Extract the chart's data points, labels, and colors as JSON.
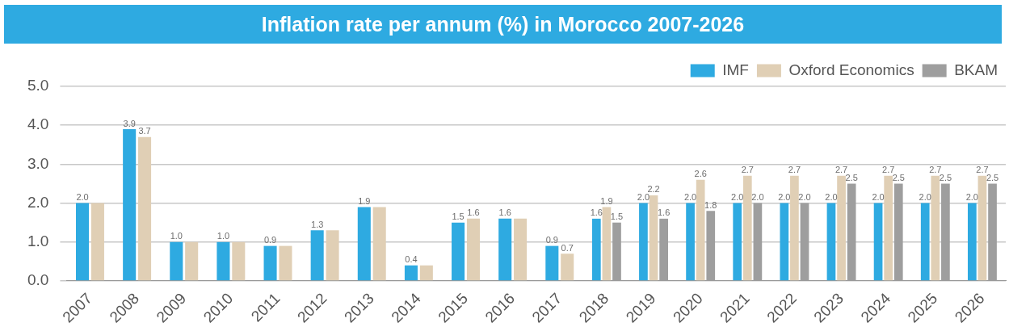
{
  "chart_data": {
    "type": "bar",
    "title": "Inflation rate per annum (%) in Morocco 2007-2026",
    "categories": [
      "2007",
      "2008",
      "2009",
      "2010",
      "2011",
      "2012",
      "2013",
      "2014",
      "2015",
      "2016",
      "2017",
      "2018",
      "2019",
      "2020",
      "2021",
      "2022",
      "2023",
      "2024",
      "2025",
      "2026"
    ],
    "series": [
      {
        "name": "IMF",
        "color": "#2eaae1",
        "values": [
          2.0,
          3.9,
          1.0,
          1.0,
          0.9,
          1.3,
          1.9,
          0.4,
          1.5,
          1.6,
          0.9,
          1.6,
          2.0,
          2.0,
          2.0,
          2.0,
          2.0,
          2.0,
          2.0,
          2.0
        ],
        "value_labels": [
          "2.0",
          "3.9",
          "1.0",
          "1.0",
          "0.9",
          "1.3",
          "1.9",
          "0.4",
          "1.5",
          "1.6",
          "0.9",
          "1.6",
          "2.0",
          "2.0",
          "2.0",
          "2.0",
          "2.0",
          "2.0",
          "2.0",
          "2.0"
        ]
      },
      {
        "name": "Oxford Economics",
        "color": "#e0cfb5",
        "values": [
          2.0,
          3.7,
          1.0,
          1.0,
          0.9,
          1.3,
          1.9,
          0.4,
          1.6,
          1.6,
          0.7,
          1.9,
          2.2,
          2.6,
          2.7,
          2.7,
          2.7,
          2.7,
          2.7,
          2.7
        ],
        "value_labels": [
          null,
          "3.7",
          null,
          null,
          null,
          null,
          null,
          null,
          "1.6",
          null,
          "0.7",
          "1.9",
          "2.2",
          "2.6",
          "2.7",
          "2.7",
          "2.7",
          "2.7",
          "2.7",
          "2.7"
        ]
      },
      {
        "name": "BKAM",
        "color": "#9e9e9e",
        "values": [
          null,
          null,
          null,
          null,
          null,
          null,
          null,
          null,
          null,
          null,
          null,
          1.5,
          1.6,
          1.8,
          2.0,
          2.0,
          2.5,
          2.5,
          2.5,
          2.5
        ],
        "value_labels": [
          null,
          null,
          null,
          null,
          null,
          null,
          null,
          null,
          null,
          null,
          null,
          "1.5",
          "1.6",
          "1.8",
          "2.0",
          "2.0",
          "2.5",
          "2.5",
          "2.5",
          "2.5"
        ]
      }
    ],
    "ylim": [
      0,
      5
    ],
    "yticks": [
      {
        "value": 0,
        "label": "0.0"
      },
      {
        "value": 1,
        "label": "1.0"
      },
      {
        "value": 2,
        "label": "2.0"
      },
      {
        "value": 3,
        "label": "3.0"
      },
      {
        "value": 4,
        "label": "4.0"
      },
      {
        "value": 5,
        "label": "5.0"
      }
    ],
    "grid": "y",
    "legend": "top right"
  }
}
